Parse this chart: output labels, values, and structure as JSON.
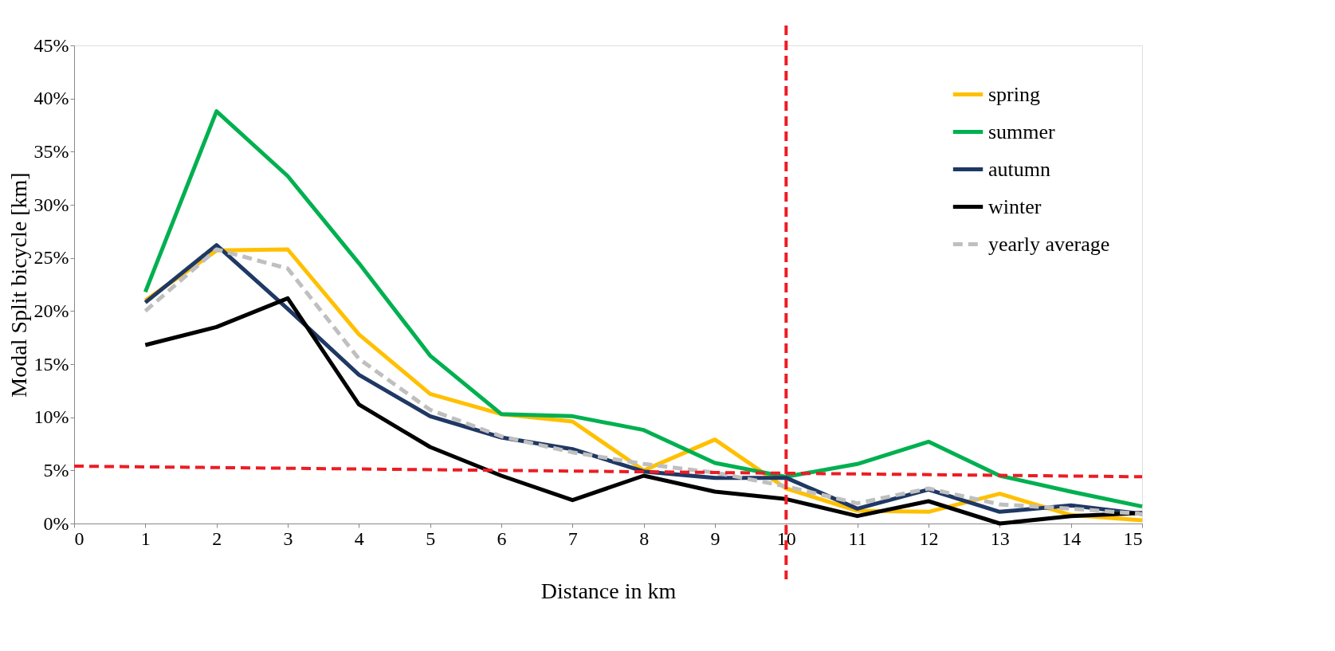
{
  "chart_data": {
    "type": "line",
    "xlabel": "Distance in km",
    "ylabel": "Modal Split bicycle [km]",
    "x": [
      1,
      2,
      3,
      4,
      5,
      6,
      7,
      8,
      9,
      10,
      11,
      12,
      13,
      14,
      15
    ],
    "series": [
      {
        "name": "spring",
        "color": "#ffc000",
        "values": [
          21.0,
          25.7,
          25.8,
          17.8,
          12.2,
          10.3,
          9.6,
          5.0,
          7.9,
          3.3,
          1.2,
          1.1,
          2.8,
          0.8,
          0.3
        ]
      },
      {
        "name": "summer",
        "color": "#00b050",
        "values": [
          21.8,
          38.8,
          32.7,
          24.5,
          15.8,
          10.3,
          10.1,
          8.8,
          5.7,
          4.4,
          5.6,
          7.7,
          4.5,
          3.0,
          1.6
        ]
      },
      {
        "name": "autumn",
        "color": "#1f3864",
        "values": [
          20.8,
          26.2,
          20.2,
          14.0,
          10.1,
          8.1,
          7.0,
          4.9,
          4.3,
          4.3,
          1.4,
          3.2,
          1.1,
          1.7,
          0.9
        ]
      },
      {
        "name": "winter",
        "color": "#000000",
        "values": [
          16.8,
          18.5,
          21.2,
          11.2,
          7.2,
          4.5,
          2.2,
          4.5,
          3.0,
          2.3,
          0.7,
          2.1,
          0.0,
          0.7,
          1.0
        ]
      },
      {
        "name": "yearly average",
        "color": "#bfbfbf",
        "line_style": "dashed",
        "values": [
          20.0,
          25.8,
          24.0,
          15.5,
          10.7,
          8.2,
          6.7,
          5.6,
          4.8,
          3.5,
          1.9,
          3.3,
          1.8,
          1.4,
          0.9
        ]
      },
      {
        "type": "line",
        "color": "#ed1c24",
        "line_style": "dashed",
        "x": [
          0,
          15
        ],
        "values": [
          5.4,
          4.4
        ]
      }
    ],
    "ref_lines": [
      {
        "axis": "x",
        "value": 10,
        "color": "#ed1c24",
        "line_style": "dashed"
      }
    ],
    "xlim": [
      0,
      15
    ],
    "xticks": [
      0,
      1,
      2,
      3,
      4,
      5,
      6,
      7,
      8,
      9,
      10,
      11,
      12,
      13,
      14,
      15
    ],
    "ylim": [
      0,
      45
    ],
    "yticks": [
      {
        "value": 0,
        "label": "0%"
      },
      {
        "value": 5,
        "label": "5%"
      },
      {
        "value": 10,
        "label": "10%"
      },
      {
        "value": 15,
        "label": "15%"
      },
      {
        "value": 20,
        "label": "20%"
      },
      {
        "value": 25,
        "label": "25%"
      },
      {
        "value": 30,
        "label": "30%"
      },
      {
        "value": 35,
        "label": "35%"
      },
      {
        "value": 40,
        "label": "40%"
      },
      {
        "value": 45,
        "label": "45%"
      }
    ],
    "grid": false,
    "legend": "top right",
    "marker": "none"
  }
}
